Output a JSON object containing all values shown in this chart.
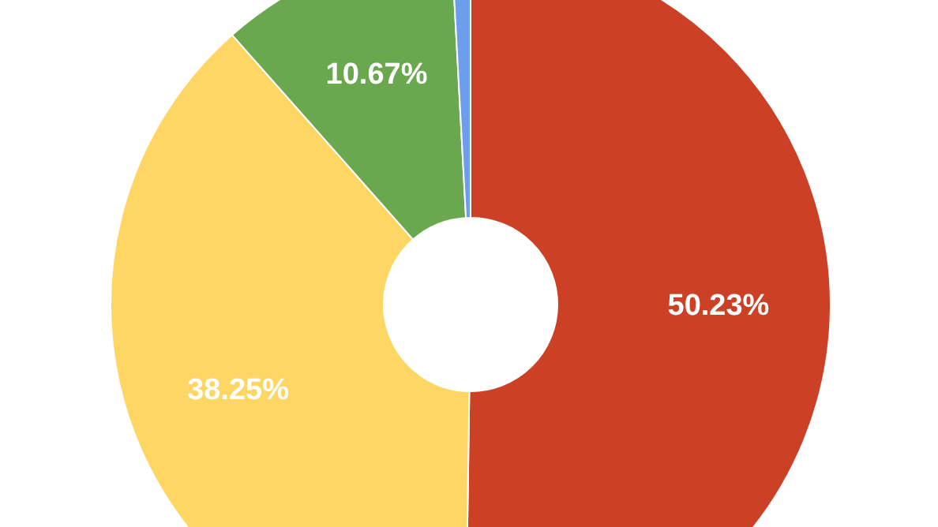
{
  "chart_data": {
    "type": "donut",
    "categories": [
      null,
      null,
      null,
      null
    ],
    "values": [
      50.23,
      38.25,
      10.67,
      0.85
    ],
    "colors": [
      "#cc4125",
      "#fdd663",
      "#6aa84f",
      "#6d9eeb"
    ],
    "value_labels": [
      "50.23%",
      "38.25%",
      "10.67%",
      null
    ]
  }
}
